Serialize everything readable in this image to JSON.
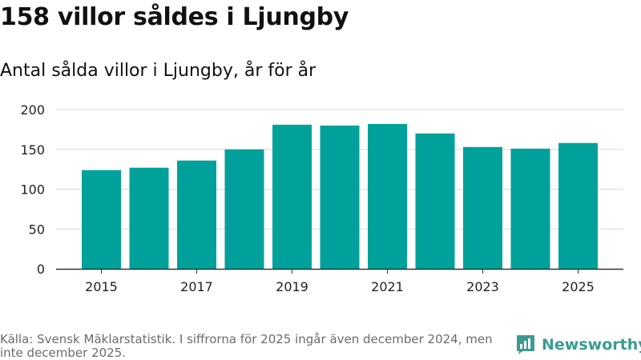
{
  "header": {
    "title": "158 villor såldes i Ljungby",
    "subtitle": "Antal sålda villor i Ljungby, år för år"
  },
  "footer": {
    "source": "Källa: Svensk Mäklarstatistik. I siffrorna för 2025 ingår även december 2024, men inte december 2025.",
    "brand": "Newsworthy"
  },
  "colors": {
    "bar": "#00a19a",
    "grid": "#d9d9d9",
    "axis": "#333333",
    "brand": "#3a9c8f"
  },
  "chart_data": {
    "type": "bar",
    "title": "Antal sålda villor i Ljungby, år för år",
    "xlabel": "",
    "ylabel": "",
    "categories": [
      "2015",
      "2016",
      "2017",
      "2018",
      "2019",
      "2020",
      "2021",
      "2022",
      "2023",
      "2024",
      "2025"
    ],
    "values": [
      124,
      127,
      136,
      150,
      181,
      180,
      182,
      170,
      153,
      151,
      158
    ],
    "x_tick_labels": [
      "2015",
      "2017",
      "2019",
      "2021",
      "2023",
      "2025"
    ],
    "y_ticks": [
      0,
      50,
      100,
      150,
      200
    ],
    "ylim": [
      0,
      200
    ],
    "grid": true,
    "legend": "none"
  }
}
